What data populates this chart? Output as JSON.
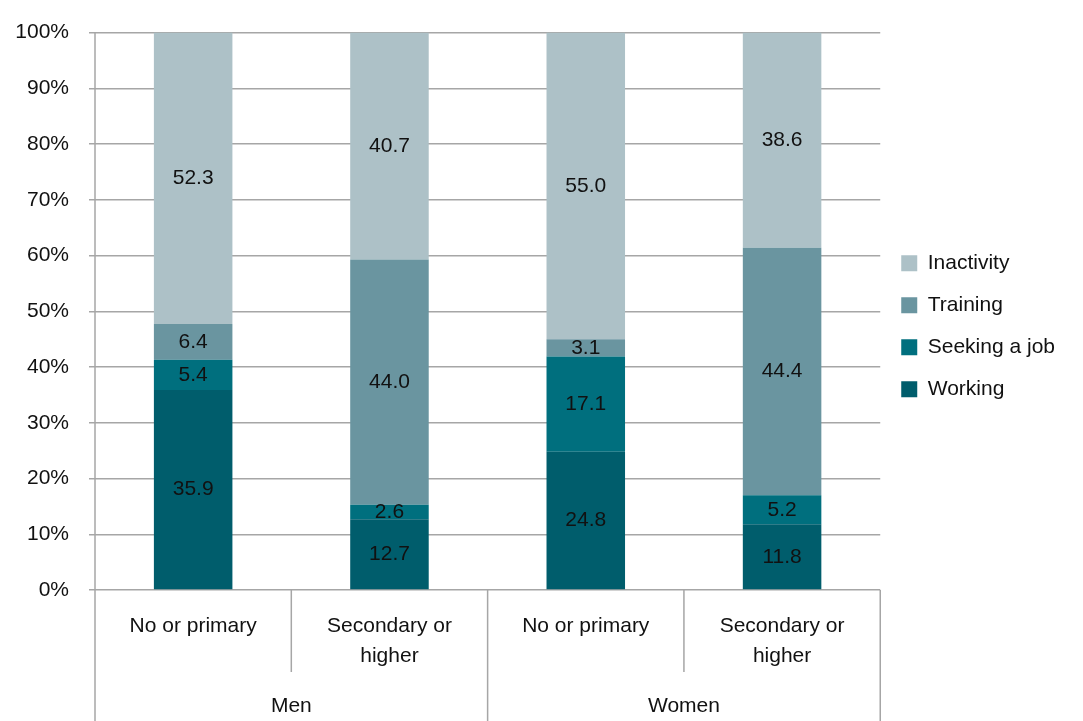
{
  "chart_data": {
    "type": "bar",
    "stacked": true,
    "categories": [
      "No or primary",
      "Secondary or higher",
      "No or primary",
      "Secondary or higher"
    ],
    "series": [
      {
        "name": "Working",
        "color": "#005d6c",
        "values": [
          35.9,
          12.7,
          24.8,
          11.8
        ],
        "value_labels": [
          "35.9",
          "12.7",
          "24.8",
          "11.8"
        ]
      },
      {
        "name": "Seeking a job",
        "color": "#006f7e",
        "values": [
          5.4,
          2.6,
          17.1,
          5.2
        ],
        "value_labels": [
          "5.4",
          "2.6",
          "17.1",
          "5.2"
        ]
      },
      {
        "name": "Training",
        "color": "#6a95a0",
        "values": [
          6.4,
          44.0,
          3.1,
          44.4
        ],
        "value_labels": [
          "6.4",
          "44.0",
          "3.1",
          "44.4"
        ]
      },
      {
        "name": "Inactivity",
        "color": "#adc1c7",
        "values": [
          52.3,
          40.7,
          55.0,
          38.6
        ],
        "value_labels": [
          "52.3",
          "40.7",
          "55.0",
          "38.6"
        ]
      }
    ],
    "ylim": [
      0,
      100
    ],
    "yticks": [
      {
        "value": 0,
        "label": "0%"
      },
      {
        "value": 10,
        "label": "10%"
      },
      {
        "value": 20,
        "label": "20%"
      },
      {
        "value": 30,
        "label": "30%"
      },
      {
        "value": 40,
        "label": "40%"
      },
      {
        "value": 50,
        "label": "50%"
      },
      {
        "value": 60,
        "label": "60%"
      },
      {
        "value": 70,
        "label": "70%"
      },
      {
        "value": 80,
        "label": "80%"
      },
      {
        "value": 90,
        "label": "90%"
      },
      {
        "value": 100,
        "label": "100%"
      }
    ],
    "grid": "y",
    "legend": "right",
    "annotations": [
      "Men",
      "Women"
    ]
  }
}
